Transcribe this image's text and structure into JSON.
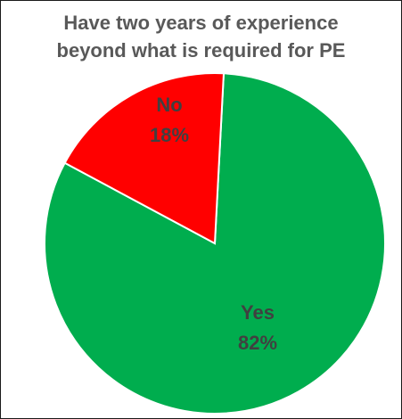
{
  "chart_data": {
    "type": "pie",
    "title_lines": [
      "Have two years of experience",
      "beyond what is required for PE"
    ],
    "slices": [
      {
        "label": "Yes",
        "value": 82,
        "value_label": "82%",
        "color": "#00AD4E"
      },
      {
        "label": "No",
        "value": 18,
        "value_label": "18%",
        "color": "#FF0000"
      }
    ],
    "slice_border_color": "#ffffff",
    "legend": "none"
  }
}
